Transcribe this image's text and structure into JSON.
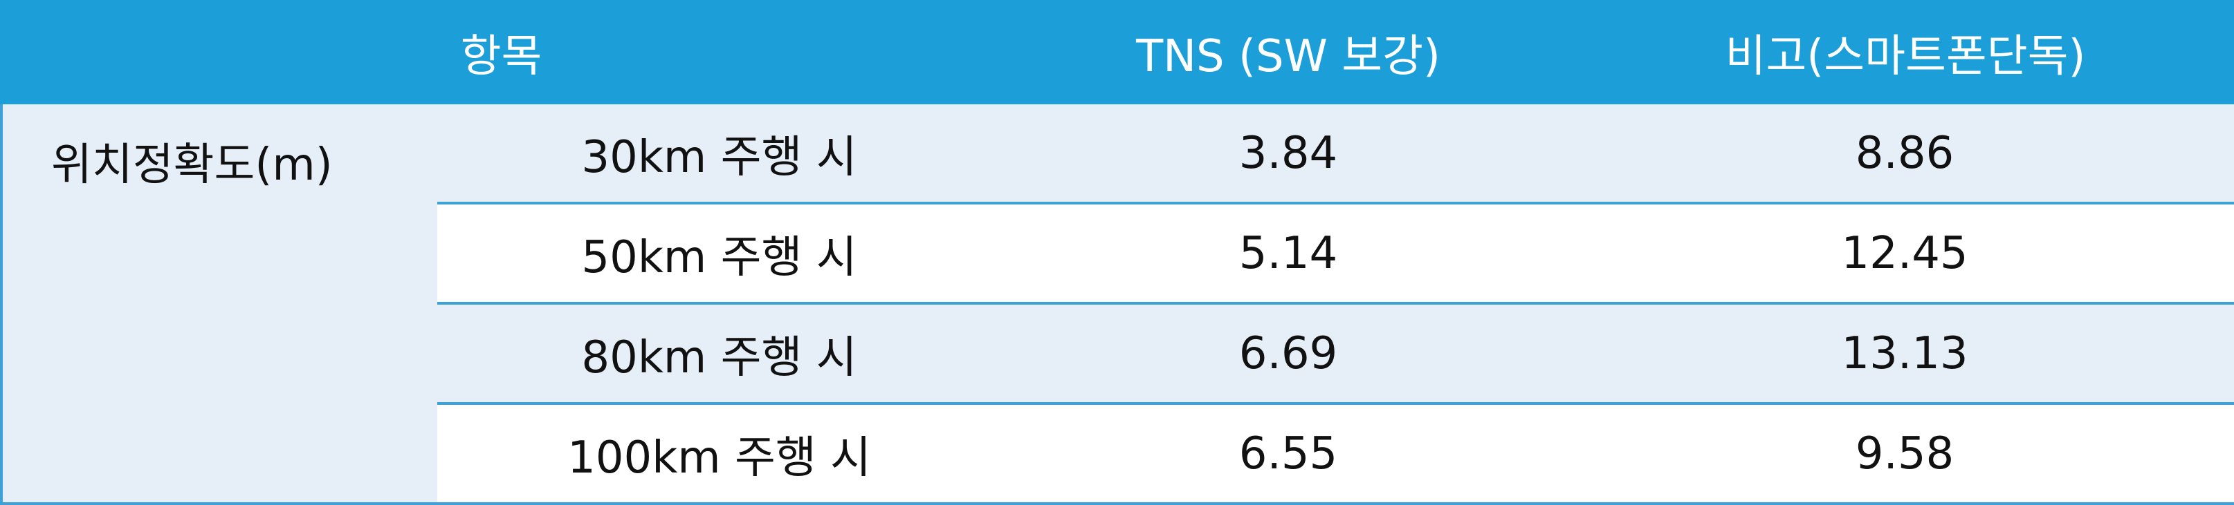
{
  "table": {
    "header": [
      "항목",
      "TNS (SW 보강)",
      "비고(스마트폰단독)"
    ],
    "group": "위치정확도(m)",
    "rows": [
      [
        "30km 주행 시",
        "3.84",
        "8.86"
      ],
      [
        "50km 주행 시",
        "5.14",
        "12.45"
      ],
      [
        "80km 주행 시",
        "6.69",
        "13.13"
      ],
      [
        "100km 주행 시",
        "6.55",
        "9.58"
      ]
    ]
  }
}
